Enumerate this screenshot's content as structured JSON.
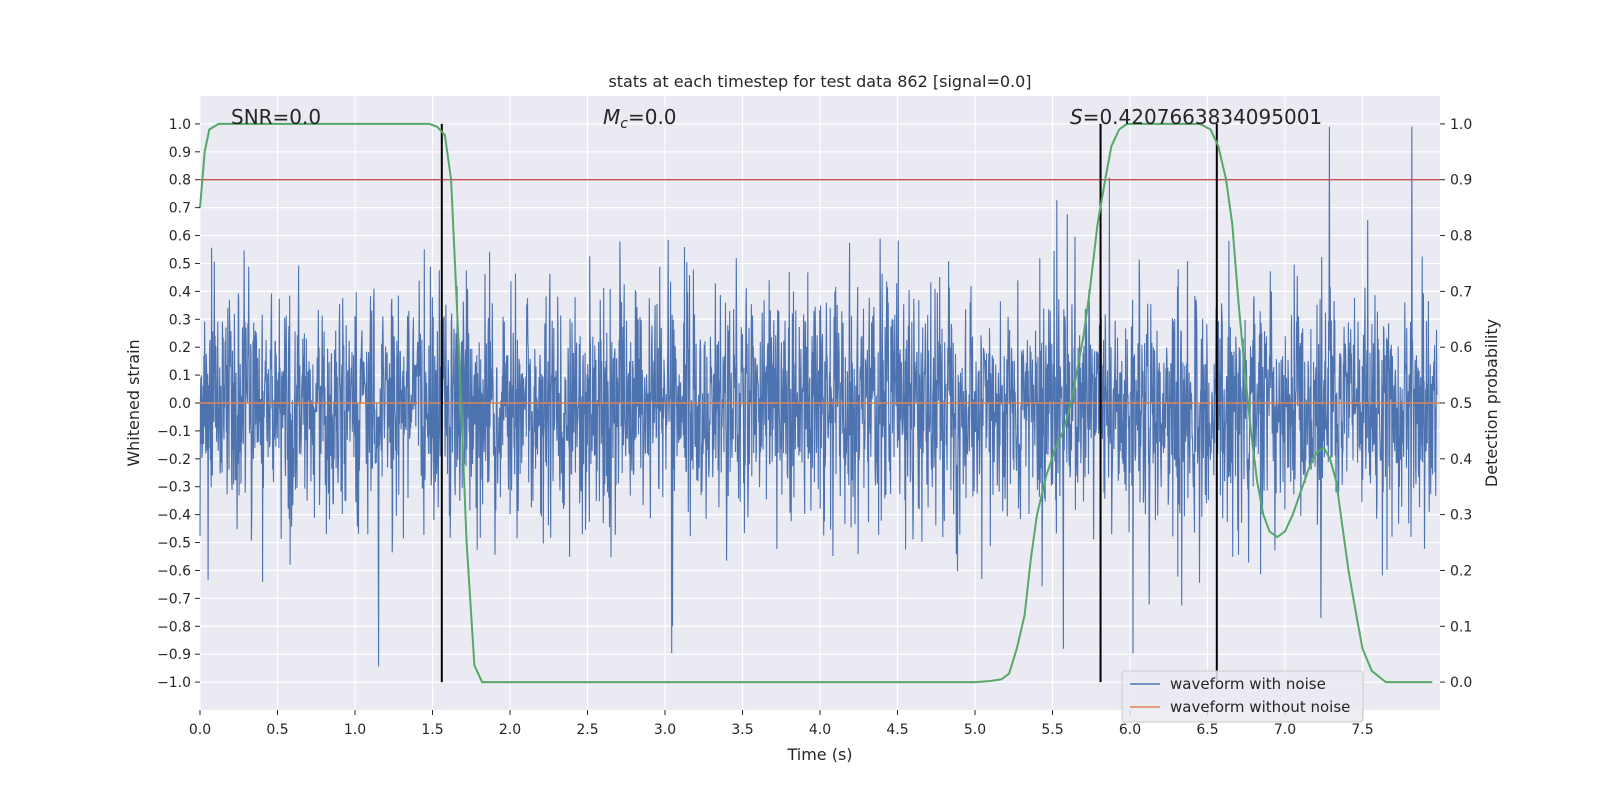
{
  "chart_data": {
    "type": "line",
    "title": "stats at each timestep for test data 862 [signal=0.0]",
    "xlabel": "Time (s)",
    "ylabel": "Whitened strain",
    "y2label": "Detection probability",
    "xlim": [
      0,
      8
    ],
    "ylim": [
      -1.1,
      1.1
    ],
    "y2lim": [
      -0.05,
      1.05
    ],
    "xticks": [
      "0.0",
      "0.5",
      "1.0",
      "1.5",
      "2.0",
      "2.5",
      "3.0",
      "3.5",
      "4.0",
      "4.5",
      "5.0",
      "5.5",
      "6.0",
      "6.5",
      "7.0",
      "7.5"
    ],
    "yticks": [
      "1.0",
      "0.9",
      "0.8",
      "0.7",
      "0.6",
      "0.5",
      "0.4",
      "0.3",
      "0.2",
      "0.1",
      "0.0",
      "−0.1",
      "−0.2",
      "−0.3",
      "−0.4",
      "−0.5",
      "−0.6",
      "−0.7",
      "−0.8",
      "−0.9",
      "−1.0"
    ],
    "y2ticks": [
      "1.0",
      "0.9",
      "0.8",
      "0.7",
      "0.6",
      "0.5",
      "0.4",
      "0.3",
      "0.2",
      "0.1",
      "0.0"
    ],
    "annotations": {
      "snr": "SNR=0.0",
      "mc_symbol": "M",
      "mc_sub": "c",
      "mc_value": "=0.0",
      "s_symbol": "S",
      "s_value": "=0.4207663834095001"
    },
    "threshold": 0.9,
    "vlines": [
      1.56,
      5.81,
      6.56
    ],
    "legend": {
      "placement": "lower-right",
      "entries": [
        "waveform with noise",
        "waveform without noise"
      ]
    },
    "colors": {
      "noise": "#4c72b0",
      "clean": "#dd8452",
      "probability": "#55a868",
      "threshold": "#c44e52",
      "vline": "#000000",
      "plot_bg": "#eaeaf2"
    },
    "series": [
      {
        "name": "waveform with noise",
        "axis": "left",
        "description_level": "dense noise trace, amplitude mostly within ±0.5 with peaks near ±1.0"
      },
      {
        "name": "waveform without noise",
        "axis": "left",
        "x": [
          0,
          8
        ],
        "y": [
          0,
          0
        ]
      },
      {
        "axis": "right",
        "x": [
          0.0,
          0.03,
          0.06,
          0.12,
          0.2,
          0.5,
          1.0,
          1.3,
          1.48,
          1.53,
          1.58,
          1.62,
          1.67,
          1.72,
          1.77,
          1.82,
          1.9,
          2.5,
          3.5,
          4.5,
          5.0,
          5.1,
          5.17,
          5.22,
          5.27,
          5.32,
          5.36,
          5.4,
          5.46,
          5.52,
          5.57,
          5.62,
          5.66,
          5.7,
          5.74,
          5.79,
          5.84,
          5.88,
          5.93,
          5.98,
          6.05,
          6.3,
          6.45,
          6.52,
          6.57,
          6.62,
          6.66,
          6.7,
          6.74,
          6.78,
          6.82,
          6.86,
          6.9,
          6.95,
          7.0,
          7.05,
          7.1,
          7.15,
          7.2,
          7.25,
          7.29,
          7.33,
          7.37,
          7.41,
          7.46,
          7.5,
          7.56,
          7.65,
          7.8,
          7.95
        ],
        "y": [
          0.85,
          0.95,
          0.99,
          1.0,
          1.0,
          1.0,
          1.0,
          1.0,
          1.0,
          0.995,
          0.98,
          0.9,
          0.6,
          0.25,
          0.03,
          0.0,
          0.0,
          0.0,
          0.0,
          0.0,
          0.0,
          0.002,
          0.005,
          0.015,
          0.06,
          0.12,
          0.22,
          0.3,
          0.37,
          0.42,
          0.45,
          0.5,
          0.56,
          0.62,
          0.7,
          0.82,
          0.9,
          0.96,
          0.99,
          1.0,
          1.0,
          1.0,
          1.0,
          0.99,
          0.96,
          0.9,
          0.82,
          0.68,
          0.56,
          0.45,
          0.36,
          0.3,
          0.27,
          0.26,
          0.27,
          0.3,
          0.34,
          0.38,
          0.41,
          0.42,
          0.4,
          0.36,
          0.28,
          0.2,
          0.12,
          0.06,
          0.02,
          0.0,
          0.0,
          0.0
        ]
      }
    ]
  }
}
